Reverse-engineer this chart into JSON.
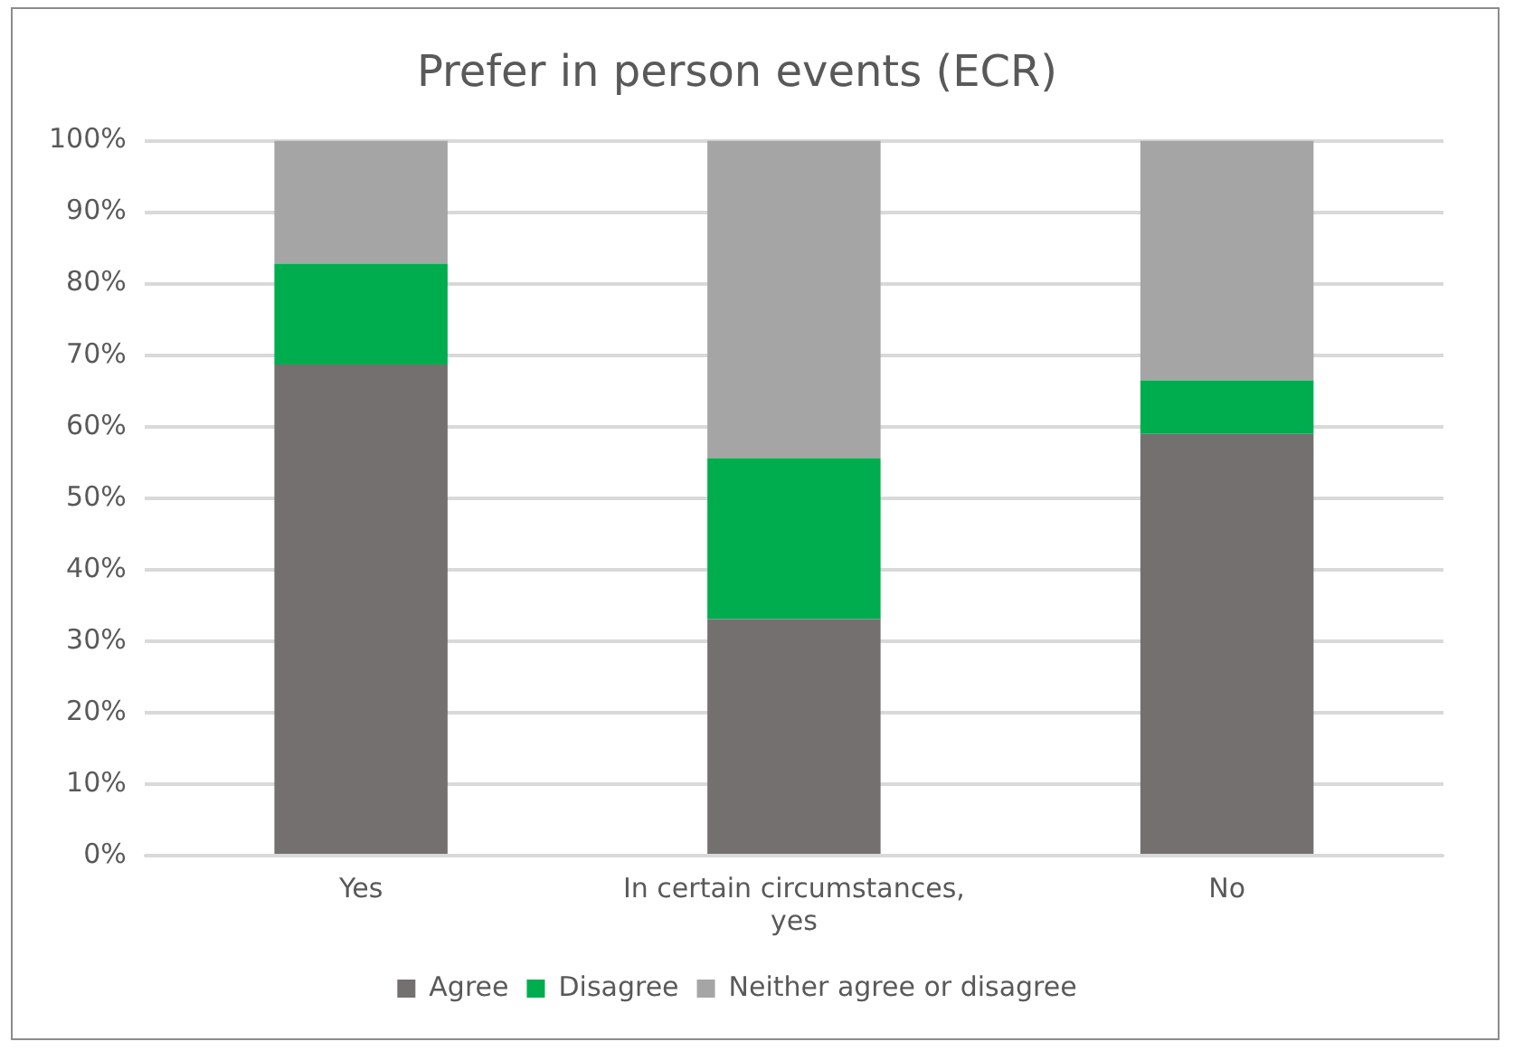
{
  "chart_data": {
    "type": "bar",
    "title": "Prefer in person events (ECR)",
    "categories": [
      "Yes",
      "In certain circumstances, yes",
      "No"
    ],
    "stacked": true,
    "ylim": [
      0,
      100
    ],
    "yticks": [
      {
        "value": 0,
        "label": "0%"
      },
      {
        "value": 10,
        "label": "10%"
      },
      {
        "value": 20,
        "label": "20%"
      },
      {
        "value": 30,
        "label": "30%"
      },
      {
        "value": 40,
        "label": "40%"
      },
      {
        "value": 50,
        "label": "50%"
      },
      {
        "value": 60,
        "label": "60%"
      },
      {
        "value": 70,
        "label": "70%"
      },
      {
        "value": 80,
        "label": "80%"
      },
      {
        "value": 90,
        "label": "90%"
      },
      {
        "value": 100,
        "label": "100%"
      }
    ],
    "grid": "y",
    "legend": "bottom",
    "series": [
      {
        "name": "Agree",
        "color": "#747070",
        "values": [
          68.7,
          33.1,
          59.0
        ]
      },
      {
        "name": "Disagree",
        "color": "#00ad4e",
        "values": [
          14.1,
          22.5,
          7.5
        ]
      },
      {
        "name": "Neither agree or disagree",
        "color": "#a5a5a5",
        "values": [
          17.2,
          44.4,
          33.5
        ]
      }
    ]
  }
}
